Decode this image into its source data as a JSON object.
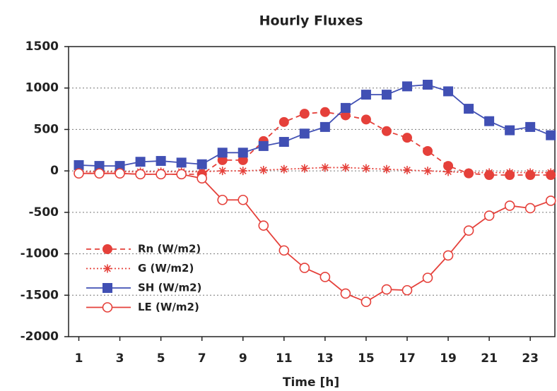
{
  "chart_data": {
    "type": "line",
    "title": "Hourly Fluxes",
    "x_label": "Time [h]",
    "x": [
      1,
      2,
      3,
      4,
      5,
      6,
      7,
      8,
      9,
      10,
      11,
      12,
      13,
      14,
      15,
      16,
      17,
      18,
      19,
      20,
      21,
      22,
      23,
      24
    ],
    "xlim": [
      0.5,
      24.2
    ],
    "xticks": [
      1,
      3,
      5,
      7,
      9,
      11,
      13,
      15,
      17,
      19,
      21,
      23
    ],
    "ylim": [
      -2000,
      1500
    ],
    "yticks": [
      -2000,
      -1500,
      -1000,
      -500,
      0,
      500,
      1000,
      1500
    ],
    "grid": true,
    "legend": "lower left",
    "series": [
      {
        "name": "Rn (W/m2)",
        "color": "#e5403a",
        "line_style": "dashed",
        "marker": "filled-circle",
        "values": [
          -30,
          -30,
          -30,
          -40,
          -40,
          -40,
          -40,
          130,
          130,
          360,
          590,
          690,
          710,
          670,
          620,
          480,
          400,
          240,
          60,
          -30,
          -50,
          -50,
          -50,
          -50
        ]
      },
      {
        "name": "G (W/m2)",
        "color": "#e5403a",
        "line_style": "dotted",
        "marker": "asterisk",
        "values": [
          -10,
          -10,
          -10,
          -10,
          -10,
          -10,
          -10,
          0,
          0,
          10,
          20,
          30,
          40,
          40,
          30,
          20,
          10,
          0,
          -10,
          -20,
          -20,
          -20,
          -20,
          -20
        ]
      },
      {
        "name": "SH (W/m2)",
        "color": "#4150b4",
        "line_style": "solid",
        "marker": "filled-square",
        "values": [
          70,
          60,
          60,
          110,
          120,
          100,
          80,
          220,
          220,
          300,
          350,
          450,
          530,
          760,
          920,
          920,
          1020,
          1040,
          960,
          750,
          600,
          490,
          530,
          430
        ]
      },
      {
        "name": "LE (W/m2)",
        "color": "#e5403a",
        "line_style": "solid",
        "marker": "open-circle",
        "values": [
          -30,
          -30,
          -30,
          -40,
          -40,
          -40,
          -90,
          -350,
          -350,
          -660,
          -960,
          -1170,
          -1280,
          -1480,
          -1580,
          -1430,
          -1440,
          -1290,
          -1020,
          -720,
          -540,
          -420,
          -450,
          -360
        ]
      }
    ]
  }
}
